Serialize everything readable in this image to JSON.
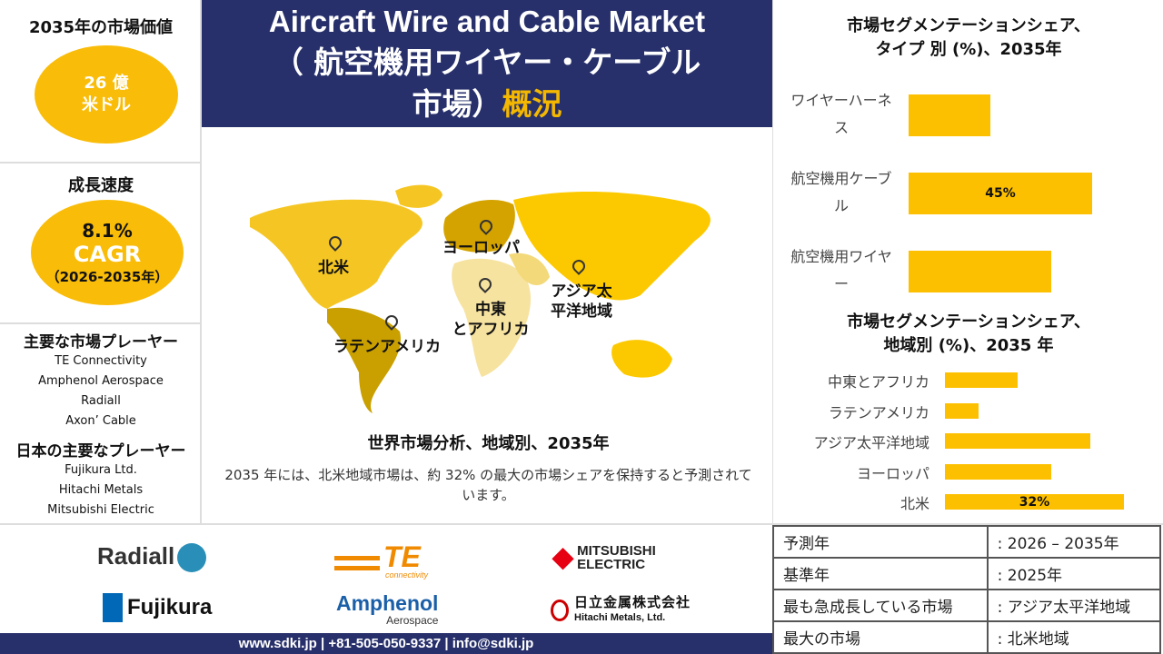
{
  "left": {
    "market_value_title": "2035年の市場価値",
    "market_value_line1": "26 億",
    "market_value_line2": "米ドル",
    "growth_title": "成長速度",
    "cagr_value": "8.1%",
    "cagr_label": "CAGR",
    "cagr_period": "（2026-2035年）",
    "key_players_title": "主要な市場プレーヤー",
    "key_players": [
      "TE Connectivity",
      "Amphenol  Aerospace",
      "Radiall",
      "Axon’ Cable"
    ],
    "japan_players_title": "日本の主要なプレーヤー",
    "japan_players": [
      "Fujikura Ltd.",
      "Hitachi Metals",
      "Mitsubishi Electric"
    ]
  },
  "header": {
    "title_en": "Aircraft Wire and Cable Market",
    "title_jp1": "（ 航空機用ワイヤー・ケーブル",
    "title_jp2": "市場）",
    "title_accent": "概況",
    "accent_color": "#f5b800",
    "bg_color": "#27306b"
  },
  "map": {
    "regions": [
      "北米",
      "ヨーロッパ",
      "アジア太\n平洋地域",
      "中東\nとアフリカ",
      "ラテンアメリカ"
    ],
    "caption": "世界市場分析、地域別、2035年",
    "description": "2035 年には、北米地域市場は、約 32% の最大の市場シェアを保持すると予測されています。"
  },
  "chart_data": [
    {
      "type": "bar",
      "orientation": "horizontal",
      "title": "市場セグメンテーションシェア、\nタイプ 別 (%)、2035年",
      "categories": [
        "ワイヤーハーネス",
        "航空機用ケーブル",
        "航空機用ワイヤー"
      ],
      "values": [
        20,
        45,
        35
      ],
      "data_labels": [
        "",
        "45%",
        ""
      ],
      "color": "#fdc000"
    },
    {
      "type": "bar",
      "orientation": "horizontal",
      "title": "市場セグメンテーションシェア、\n地域別 (%)、2035 年",
      "categories": [
        "中東とアフリカ",
        "ラテンアメリカ",
        "アジア太平洋地域",
        "ヨーロッパ",
        "北米"
      ],
      "values": [
        13,
        6,
        26,
        19,
        32
      ],
      "data_labels": [
        "",
        "",
        "",
        "",
        "32%"
      ],
      "color": "#fdc000"
    }
  ],
  "info_table": [
    {
      "label": "予測年",
      "value": ": 2026 – 2035年"
    },
    {
      "label": "基準年",
      "value": ": 2025年"
    },
    {
      "label": " 最も急成長している市場",
      "value": ": アジア太平洋地域"
    },
    {
      "label": " 最大の市場",
      "value": ": 北米地域"
    }
  ],
  "logos": {
    "radiall": "Radiall",
    "te": "TE",
    "te_sub": "connectivity",
    "mitsubishi1": "MITSUBISHI",
    "mitsubishi2": "ELECTRIC",
    "fujikura": "Fujikura",
    "amphenol": "Amphenol",
    "amphenol_sub": "Aerospace",
    "hitachi_jp": "日立金属株式会社",
    "hitachi_en": "Hitachi Metals, Ltd."
  },
  "footer": {
    "contact": "www.sdki.jp | +81-505-050-9337 | info@sdki.jp"
  }
}
